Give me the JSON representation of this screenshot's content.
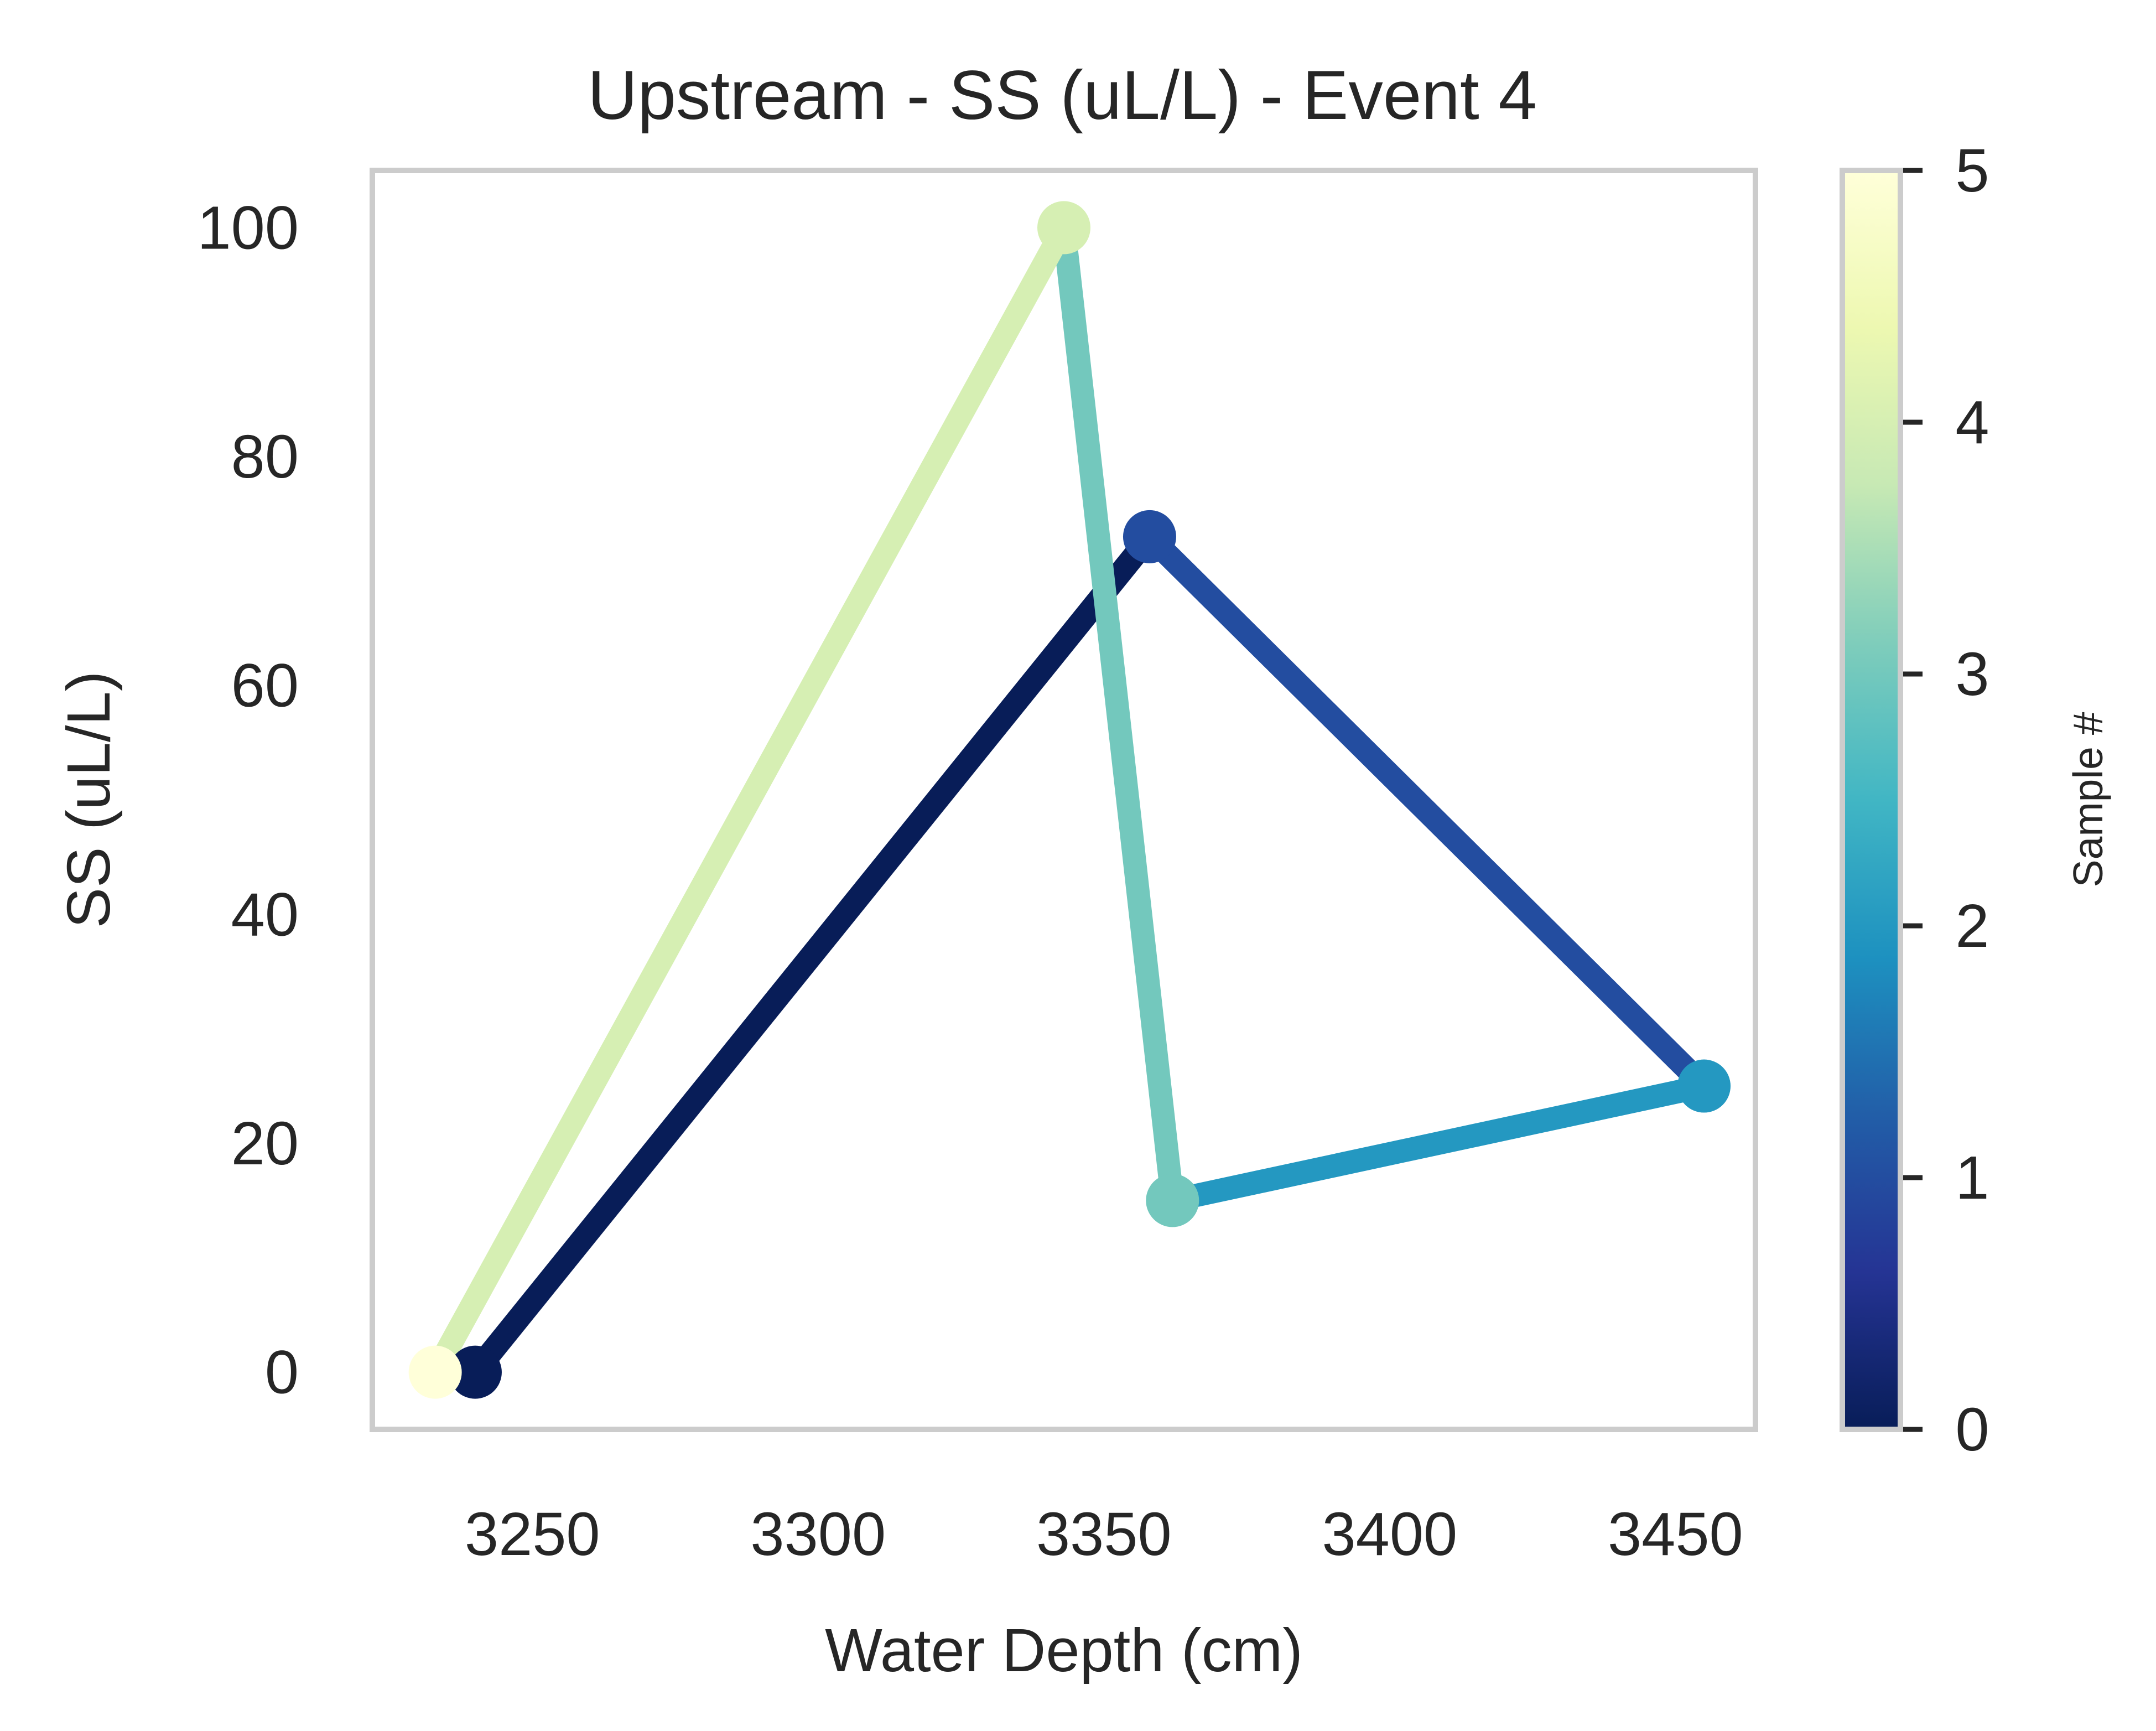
{
  "chart_data": {
    "type": "line",
    "title": "Upstream - SS (uL/L) - Event 4",
    "xlabel": "Water Depth (cm)",
    "ylabel": "SS (uL/L)",
    "xlim": [
      3222,
      3464
    ],
    "ylim": [
      -5,
      105
    ],
    "xticks": [
      3250,
      3300,
      3350,
      3400,
      3450
    ],
    "yticks": [
      0,
      20,
      40,
      60,
      80,
      100
    ],
    "grid": false,
    "points": [
      {
        "sample": 0,
        "x": 3240,
        "y": 0,
        "color": "#081d58"
      },
      {
        "sample": 1,
        "x": 3358,
        "y": 73,
        "color": "#234da0"
      },
      {
        "sample": 2,
        "x": 3455,
        "y": 25,
        "color": "#2498c1"
      },
      {
        "sample": 3,
        "x": 3362,
        "y": 15,
        "color": "#73c8bd"
      },
      {
        "sample": 4,
        "x": 3343,
        "y": 100,
        "color": "#d6efb3"
      },
      {
        "sample": 5,
        "x": 3233,
        "y": 0,
        "color": "#ffffd9"
      }
    ],
    "colorbar": {
      "label": "Sample #",
      "ticks": [
        0,
        1,
        2,
        3,
        4,
        5
      ],
      "range": [
        0,
        5
      ],
      "colormap": "YlGnBu_r",
      "stops": [
        "#081d58",
        "#253494",
        "#225ea8",
        "#1d91c0",
        "#41b6c4",
        "#7fcdbb",
        "#c7e9b4",
        "#edf8b1",
        "#ffffd9"
      ]
    }
  }
}
